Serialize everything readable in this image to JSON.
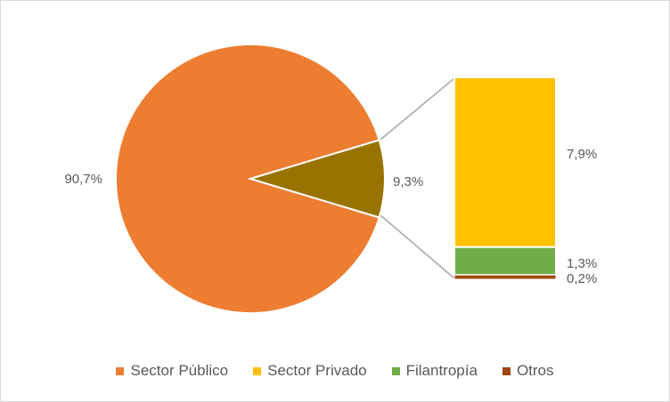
{
  "chart_data": {
    "type": "pie",
    "subtype": "bar-of-pie",
    "pie": {
      "slices": [
        {
          "name": "Sector Público",
          "value": 90.7,
          "label": "90,7%",
          "color": "#ED7D31"
        },
        {
          "name": "",
          "value": 9.3,
          "label": "9,3%",
          "color": "#997300"
        }
      ]
    },
    "bar": {
      "segments": [
        {
          "name": "Sector Privado",
          "value": 7.9,
          "label": "7,9%",
          "color": "#FFC000"
        },
        {
          "name": "Filantropía",
          "value": 1.3,
          "label": "1,3%",
          "color": "#70AD47"
        },
        {
          "name": "Otros",
          "value": 0.2,
          "label": "0,2%",
          "color": "#9E480E"
        }
      ]
    },
    "legend": {
      "position": "bottom",
      "items": [
        {
          "label": "Sector Público",
          "color": "#ED7D31"
        },
        {
          "label": "Sector Privado",
          "color": "#FFC000"
        },
        {
          "label": "Filantropía",
          "color": "#70AD47"
        },
        {
          "label": "Otros",
          "color": "#9E480E"
        }
      ]
    }
  }
}
